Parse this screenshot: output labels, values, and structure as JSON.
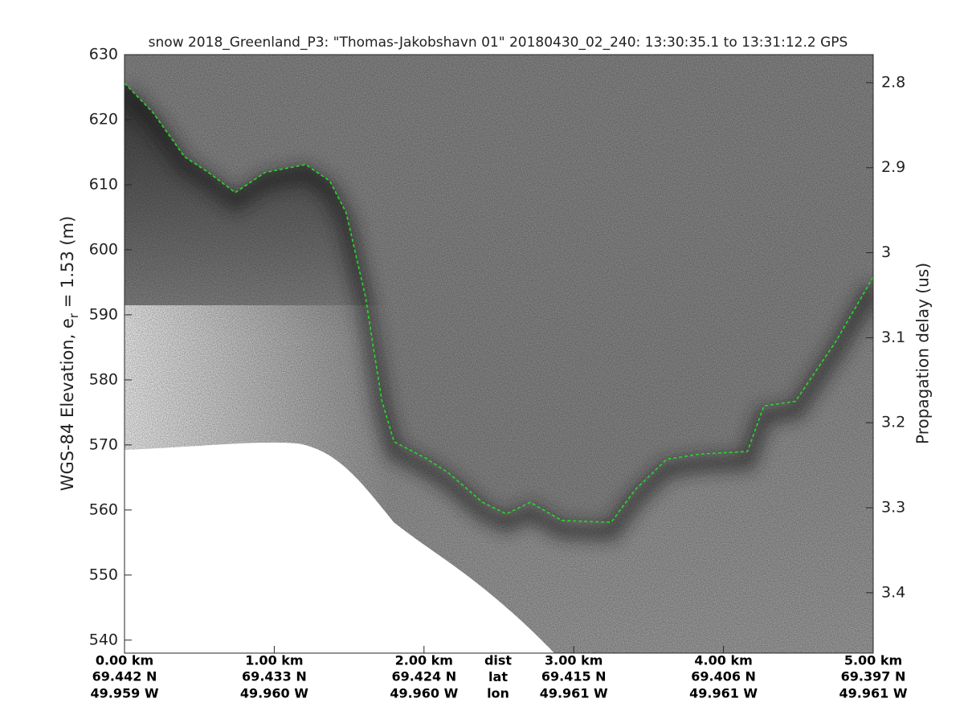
{
  "chart_data": {
    "type": "echogram",
    "title": "snow 2018_Greenland_P3: \"Thomas-Jakobshavn 01\"  20180430_02_240: 13:30:35.1 to 13:31:12.2 GPS",
    "ylabel": {
      "text": "WGS-84 Elevation, e",
      "subscript": "r",
      "rest": " = 1.53 (m)"
    },
    "y2label": "Propagation delay (us)",
    "xlim": [
      0,
      5
    ],
    "xticks": [
      {
        "value": 0,
        "label": "0.00 km"
      },
      {
        "value": 1,
        "label": "1.00 km"
      },
      {
        "value": 2,
        "label": "2.00 km"
      },
      {
        "value": 3,
        "label": "3.00 km"
      },
      {
        "value": 4,
        "label": "4.00 km"
      },
      {
        "value": 5,
        "label": "5.00 km"
      }
    ],
    "lat_labels": [
      "69.442 N",
      "69.433 N",
      "69.424 N",
      "69.415 N",
      "69.406 N",
      "69.397 N"
    ],
    "lon_labels": [
      "49.959 W",
      "49.960 W",
      "49.960 W",
      "49.961 W",
      "49.961 W",
      "49.961 W"
    ],
    "row_labels": [
      "dist",
      "lat",
      "lon"
    ],
    "ylim": [
      538,
      630
    ],
    "yticks": [
      540,
      550,
      560,
      570,
      580,
      590,
      600,
      610,
      620,
      630
    ],
    "y2lim": [
      2.767,
      3.471
    ],
    "y2ticks": [
      2.8,
      2.9,
      3,
      3.1,
      3.2,
      3.3,
      3.4
    ],
    "surface": {
      "color": "#22dd22",
      "x": [
        0,
        0.19,
        0.4,
        0.56,
        0.74,
        0.94,
        1.21,
        1.37,
        1.48,
        1.56,
        1.61,
        1.66,
        1.72,
        1.8,
        2.01,
        2.17,
        2.39,
        2.55,
        2.71,
        2.92,
        3.25,
        3.41,
        3.62,
        3.84,
        4.16,
        4.27,
        4.48,
        4.75,
        5
      ],
      "values": [
        625.6,
        621.1,
        614.3,
        611.9,
        608.8,
        611.9,
        613.1,
        610.6,
        605.7,
        597.7,
        592.7,
        585.3,
        576.7,
        570.5,
        568,
        565.6,
        561.2,
        559.4,
        561.2,
        558.4,
        558.1,
        563.1,
        567.8,
        568.6,
        569,
        576,
        576.7,
        585.9,
        595.8
      ]
    }
  }
}
